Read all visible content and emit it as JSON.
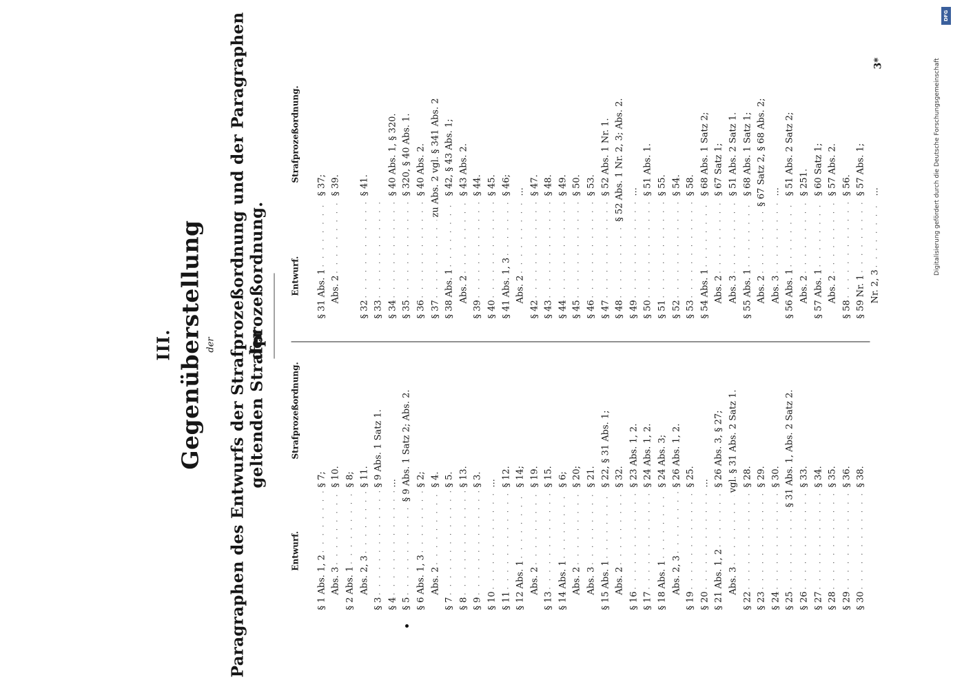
{
  "header": {
    "roman": "III.",
    "title": "Gegenüberstellung",
    "der": "der",
    "subtitle_line1": "Paragraphen des Entwurfs der Strafprozeßordnung und der Paragraphen der",
    "subtitle_line2": "geltenden Strafprozeßordnung."
  },
  "column_headers": {
    "left_entwurf": "Entwurf.",
    "left_stpo": "Strafprozeßordnung.",
    "right_entwurf": "Entwurf.",
    "right_stpo": "Strafprozeßordnung."
  },
  "left_rows": [
    {
      "para": "§ 1",
      "sub": "Abs. 1, 2",
      "stpo": "§ 7;"
    },
    {
      "para": "",
      "sub": "Abs. 3",
      "stpo": "§ 10."
    },
    {
      "para": "§ 2",
      "sub": "Abs. 1",
      "stpo": "§ 8;"
    },
    {
      "para": "",
      "sub": "Abs. 2, 3",
      "stpo": "§ 11."
    },
    {
      "para": "§ 3",
      "sub": "",
      "stpo": "§ 9 Abs. 1 Satz 1."
    },
    {
      "para": "§ 4",
      "sub": "",
      "stpo": "..."
    },
    {
      "para": "§ 5",
      "sub": "",
      "stpo": "§ 9 Abs. 1 Satz 2; Abs. 2."
    },
    {
      "para": "§ 6",
      "sub": "Abs. 1, 3",
      "stpo": "§ 2;"
    },
    {
      "para": "",
      "sub": "Abs. 2",
      "stpo": "§ 4."
    },
    {
      "para": "§ 7",
      "sub": "",
      "stpo": "§ 5."
    },
    {
      "para": "§ 8",
      "sub": "",
      "stpo": "§ 13."
    },
    {
      "para": "§ 9",
      "sub": "",
      "stpo": "§ 3."
    },
    {
      "para": "§ 10",
      "sub": "",
      "stpo": "..."
    },
    {
      "para": "§ 11",
      "sub": "",
      "stpo": "§ 12."
    },
    {
      "para": "§ 12",
      "sub": "Abs. 1",
      "stpo": "§ 14;"
    },
    {
      "para": "",
      "sub": "Abs. 2",
      "stpo": "§ 19."
    },
    {
      "para": "§ 13",
      "sub": "",
      "stpo": "§ 15."
    },
    {
      "para": "§ 14",
      "sub": "Abs. 1",
      "stpo": "§ 6;"
    },
    {
      "para": "",
      "sub": "Abs. 2",
      "stpo": "§ 20;"
    },
    {
      "para": "",
      "sub": "Abs. 3",
      "stpo": "§ 21."
    },
    {
      "para": "§ 15",
      "sub": "Abs. 1",
      "stpo": "§ 22, § 31 Abs. 1;"
    },
    {
      "para": "",
      "sub": "Abs. 2",
      "stpo": "§ 32."
    },
    {
      "para": "§ 16",
      "sub": "",
      "stpo": "§ 23 Abs. 1, 2."
    },
    {
      "para": "§ 17",
      "sub": "",
      "stpo": "§ 24 Abs. 1, 2."
    },
    {
      "para": "§ 18",
      "sub": "Abs. 1",
      "stpo": "§ 24 Abs. 3;"
    },
    {
      "para": "",
      "sub": "Abs. 2, 3",
      "stpo": "§ 26 Abs. 1, 2."
    },
    {
      "para": "§ 19",
      "sub": "",
      "stpo": "§ 25."
    },
    {
      "para": "§ 20",
      "sub": "",
      "stpo": "..."
    },
    {
      "para": "§ 21",
      "sub": "Abs. 1, 2",
      "stpo": "§ 26 Abs. 3, § 27;"
    },
    {
      "para": "",
      "sub": "Abs. 3",
      "stpo": "vgl. § 31 Abs. 2 Satz 1."
    },
    {
      "para": "§ 22",
      "sub": "",
      "stpo": "§ 28."
    },
    {
      "para": "§ 23",
      "sub": "",
      "stpo": "§ 29."
    },
    {
      "para": "§ 24",
      "sub": "",
      "stpo": "§ 30."
    },
    {
      "para": "§ 25",
      "sub": "",
      "stpo": "§ 31 Abs. 1, Abs. 2 Satz 2."
    },
    {
      "para": "§ 26",
      "sub": "",
      "stpo": "§ 33."
    },
    {
      "para": "§ 27",
      "sub": "",
      "stpo": "§ 34."
    },
    {
      "para": "§ 28",
      "sub": "",
      "stpo": "§ 35."
    },
    {
      "para": "§ 29",
      "sub": "",
      "stpo": "§ 36."
    },
    {
      "para": "§ 30",
      "sub": "",
      "stpo": "§ 38."
    }
  ],
  "right_rows": [
    {
      "para": "§ 31",
      "sub": "Abs. 1",
      "stpo": "§ 37;"
    },
    {
      "para": "",
      "sub": "Abs. 2",
      "stpo": "§ 39."
    },
    {
      "para": "",
      "sub": "",
      "stpo": ""
    },
    {
      "para": "§ 32",
      "sub": "",
      "stpo": "§ 41."
    },
    {
      "para": "§ 33",
      "sub": "",
      "stpo": ""
    },
    {
      "para": "§ 34",
      "sub": "",
      "stpo": "§ 40 Abs. 1, § 320."
    },
    {
      "para": "§ 35",
      "sub": "",
      "stpo": "§ 320, § 40 Abs. 1."
    },
    {
      "para": "§ 36",
      "sub": "",
      "stpo": "§ 40 Abs. 2."
    },
    {
      "para": "§ 37",
      "sub": "",
      "stpo": "zu Abs. 2 vgl. § 341 Abs. 2"
    },
    {
      "para": "§ 38",
      "sub": "Abs. 1",
      "stpo": "§ 42, § 43 Abs. 1;"
    },
    {
      "para": "",
      "sub": "Abs. 2",
      "stpo": "§ 43 Abs. 2."
    },
    {
      "para": "§ 39",
      "sub": "",
      "stpo": "§ 44."
    },
    {
      "para": "§ 40",
      "sub": "",
      "stpo": "§ 45."
    },
    {
      "para": "§ 41",
      "sub": "Abs. 1, 3",
      "stpo": "§ 46;"
    },
    {
      "para": "",
      "sub": "Abs. 2",
      "stpo": "..."
    },
    {
      "para": "§ 42",
      "sub": "",
      "stpo": "§ 47."
    },
    {
      "para": "§ 43",
      "sub": "",
      "stpo": "§ 48."
    },
    {
      "para": "§ 44",
      "sub": "",
      "stpo": "§ 49."
    },
    {
      "para": "§ 45",
      "sub": "",
      "stpo": "§ 50."
    },
    {
      "para": "§ 46",
      "sub": "",
      "stpo": "§ 53."
    },
    {
      "para": "§ 47",
      "sub": "",
      "stpo": "§ 52 Abs. 1 Nr. 1."
    },
    {
      "para": "§ 48",
      "sub": "",
      "stpo": "§ 52 Abs. 1 Nr. 2, 3; Abs. 2."
    },
    {
      "para": "§ 49",
      "sub": "",
      "stpo": "..."
    },
    {
      "para": "§ 50",
      "sub": "",
      "stpo": "§ 51 Abs. 1."
    },
    {
      "para": "§ 51",
      "sub": "",
      "stpo": "§ 55."
    },
    {
      "para": "§ 52",
      "sub": "",
      "stpo": "§ 54."
    },
    {
      "para": "§ 53",
      "sub": "",
      "stpo": "§ 58."
    },
    {
      "para": "§ 54",
      "sub": "Abs. 1",
      "stpo": "§ 68 Abs. 1 Satz 2;"
    },
    {
      "para": "",
      "sub": "Abs. 2",
      "stpo": "§ 67 Satz 1;"
    },
    {
      "para": "",
      "sub": "Abs. 3",
      "stpo": "§ 51 Abs. 2 Satz 1."
    },
    {
      "para": "§ 55",
      "sub": "Abs. 1",
      "stpo": "§ 68 Abs. 1 Satz 1;"
    },
    {
      "para": "",
      "sub": "Abs. 2",
      "stpo": "§ 67 Satz 2, § 68 Abs. 2;"
    },
    {
      "para": "",
      "sub": "Abs. 3",
      "stpo": "..."
    },
    {
      "para": "§ 56",
      "sub": "Abs. 1",
      "stpo": "§ 51 Abs. 2 Satz 2;"
    },
    {
      "para": "",
      "sub": "Abs. 2",
      "stpo": "§ 251."
    },
    {
      "para": "§ 57",
      "sub": "Abs. 1",
      "stpo": "§ 60 Satz 1;"
    },
    {
      "para": "",
      "sub": "Abs. 2",
      "stpo": "§ 57 Abs. 2."
    },
    {
      "para": "§ 58",
      "sub": "",
      "stpo": "§ 56."
    },
    {
      "para": "§ 59",
      "sub": "Nr. 1",
      "stpo": "§ 57 Abs. 1;"
    },
    {
      "para": "",
      "sub": "Nr. 2, 3",
      "stpo": "..."
    }
  ],
  "page_number": "3*",
  "digitization_note": "Digitalisierung gefördert durch die Deutsche Forschungsgemeinschaft",
  "logo_text": "DFG"
}
